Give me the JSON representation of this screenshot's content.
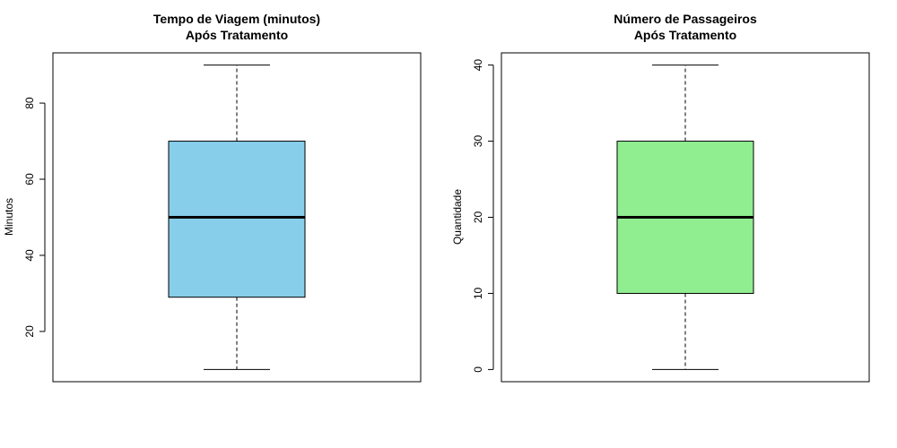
{
  "chart_data": [
    {
      "type": "boxplot",
      "title_lines": [
        "Tempo de Viagem (minutos)",
        "Após Tratamento"
      ],
      "xlabel": "",
      "ylabel": "Minutos",
      "ylim": [
        6.8,
        93.2
      ],
      "yticks": [
        20,
        40,
        60,
        80
      ],
      "box": {
        "min": 10,
        "q1": 29,
        "median": 50,
        "q3": 70,
        "max": 90
      },
      "fill_color": "#87CEEB",
      "grid": false
    },
    {
      "type": "boxplot",
      "title_lines": [
        "Número de Passageiros",
        "Após Tratamento"
      ],
      "xlabel": "",
      "ylabel": "Quantidade",
      "ylim": [
        -1.6,
        41.6
      ],
      "yticks": [
        0,
        10,
        20,
        30,
        40
      ],
      "box": {
        "min": 0,
        "q1": 10,
        "median": 20,
        "q3": 30,
        "max": 40
      },
      "fill_color": "#90EE90",
      "grid": false
    }
  ]
}
